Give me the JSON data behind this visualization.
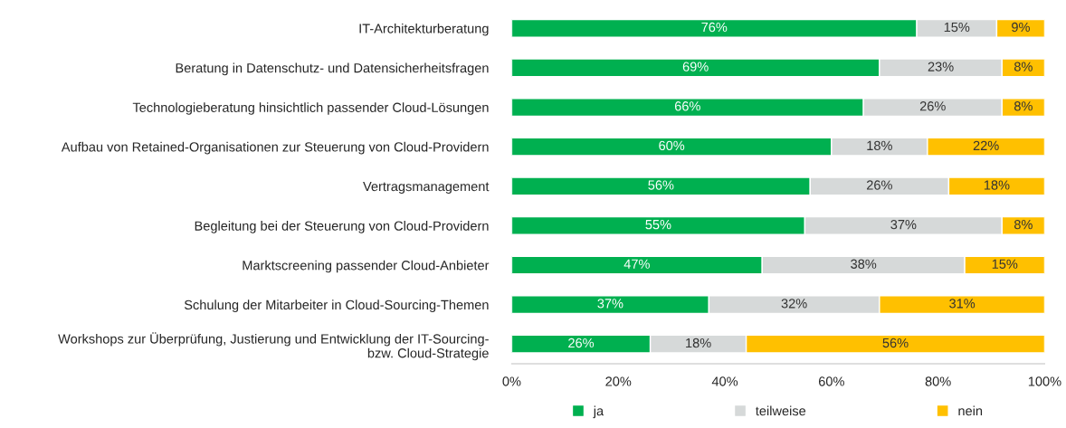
{
  "chart_data": {
    "type": "bar",
    "orientation": "horizontal",
    "stacked": true,
    "categories": [
      "IT-Architekturberatung",
      "Beratung in Datenschutz- und Datensicherheitsfragen",
      "Technologieberatung hinsichtlich passender Cloud-Lösungen",
      "Aufbau von Retained-Organisationen zur Steuerung von Cloud-Providern",
      "Vertragsmanagement",
      "Begleitung bei der Steuerung von Cloud-Providern",
      "Marktscreening passender Cloud-Anbieter",
      "Schulung der Mitarbeiter in Cloud-Sourcing-Themen",
      "Workshops zur Überprüfung, Justierung und Entwicklung der IT-Sourcing-\nbzw. Cloud-Strategie"
    ],
    "series": [
      {
        "name": "ja",
        "color": "#00b050",
        "values": [
          76,
          69,
          66,
          60,
          56,
          55,
          47,
          37,
          26
        ],
        "value_labels": [
          "76%",
          "69%",
          "66%",
          "60%",
          "56%",
          "55%",
          "47%",
          "37%",
          "26%"
        ]
      },
      {
        "name": "teilweise",
        "color": "#d6d9d9",
        "values": [
          15,
          23,
          26,
          18,
          26,
          37,
          38,
          32,
          18
        ],
        "value_labels": [
          "15%",
          "23%",
          "26%",
          "18%",
          "26%",
          "37%",
          "38%",
          "32%",
          "18%"
        ]
      },
      {
        "name": "nein",
        "color": "#ffc000",
        "values": [
          9,
          8,
          8,
          22,
          18,
          8,
          15,
          31,
          56
        ],
        "value_labels": [
          "9%",
          "8%",
          "8%",
          "22%",
          "18%",
          "8%",
          "15%",
          "31%",
          "56%"
        ]
      }
    ],
    "xlim": [
      0,
      100
    ],
    "xticks": [
      {
        "value": 0,
        "label": "0%"
      },
      {
        "value": 20,
        "label": "20%"
      },
      {
        "value": 40,
        "label": "40%"
      },
      {
        "value": 60,
        "label": "60%"
      },
      {
        "value": 80,
        "label": "80%"
      },
      {
        "value": 100,
        "label": "100%"
      }
    ],
    "grid": false,
    "legend": "bottom"
  }
}
